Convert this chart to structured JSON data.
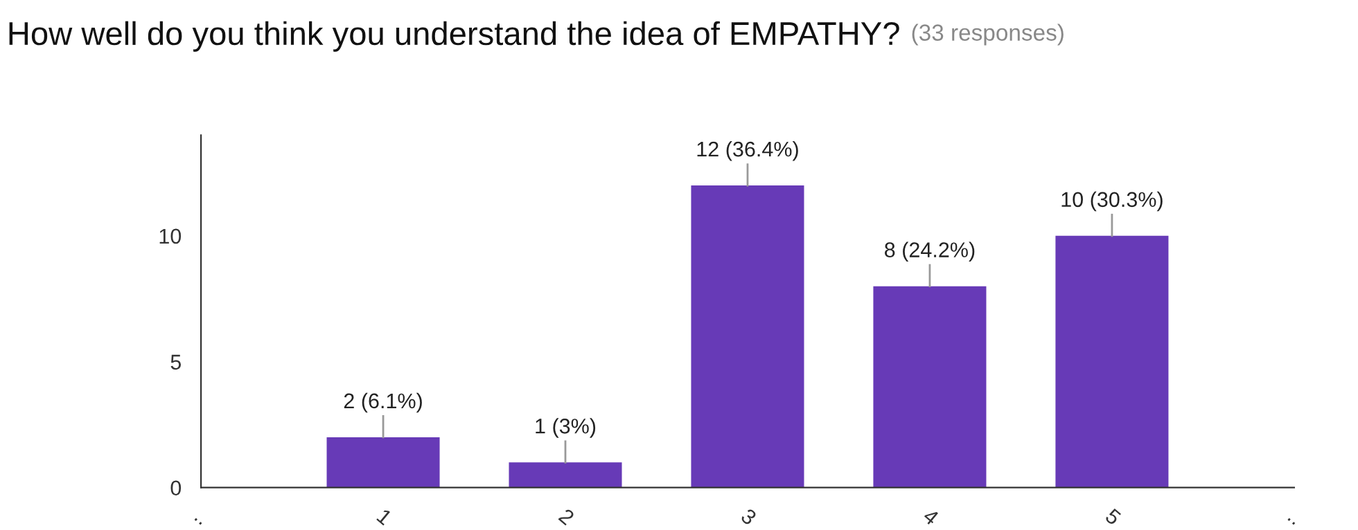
{
  "chart_data": {
    "type": "bar",
    "title": "How well do you think you understand the idea of EMPATHY?",
    "subtitle": "(33 responses)",
    "x": [
      1,
      2,
      3,
      4,
      5
    ],
    "values": [
      2,
      1,
      12,
      8,
      10
    ],
    "color": "#673ab7",
    "value_labels": [
      "2 (6.1%)",
      "1 (3%)",
      "12 (36.4%)",
      "8 (24.2%)",
      "10 (30.3%)"
    ],
    "xlim": [
      0,
      6
    ],
    "xticks": [
      {
        "value": 0,
        "label": ".."
      },
      1,
      2,
      3,
      4,
      5,
      {
        "value": 6,
        "label": ".."
      }
    ],
    "ylim": [
      0,
      14
    ],
    "yticks": [
      0,
      5,
      10
    ],
    "grid": false,
    "legend": false
  }
}
